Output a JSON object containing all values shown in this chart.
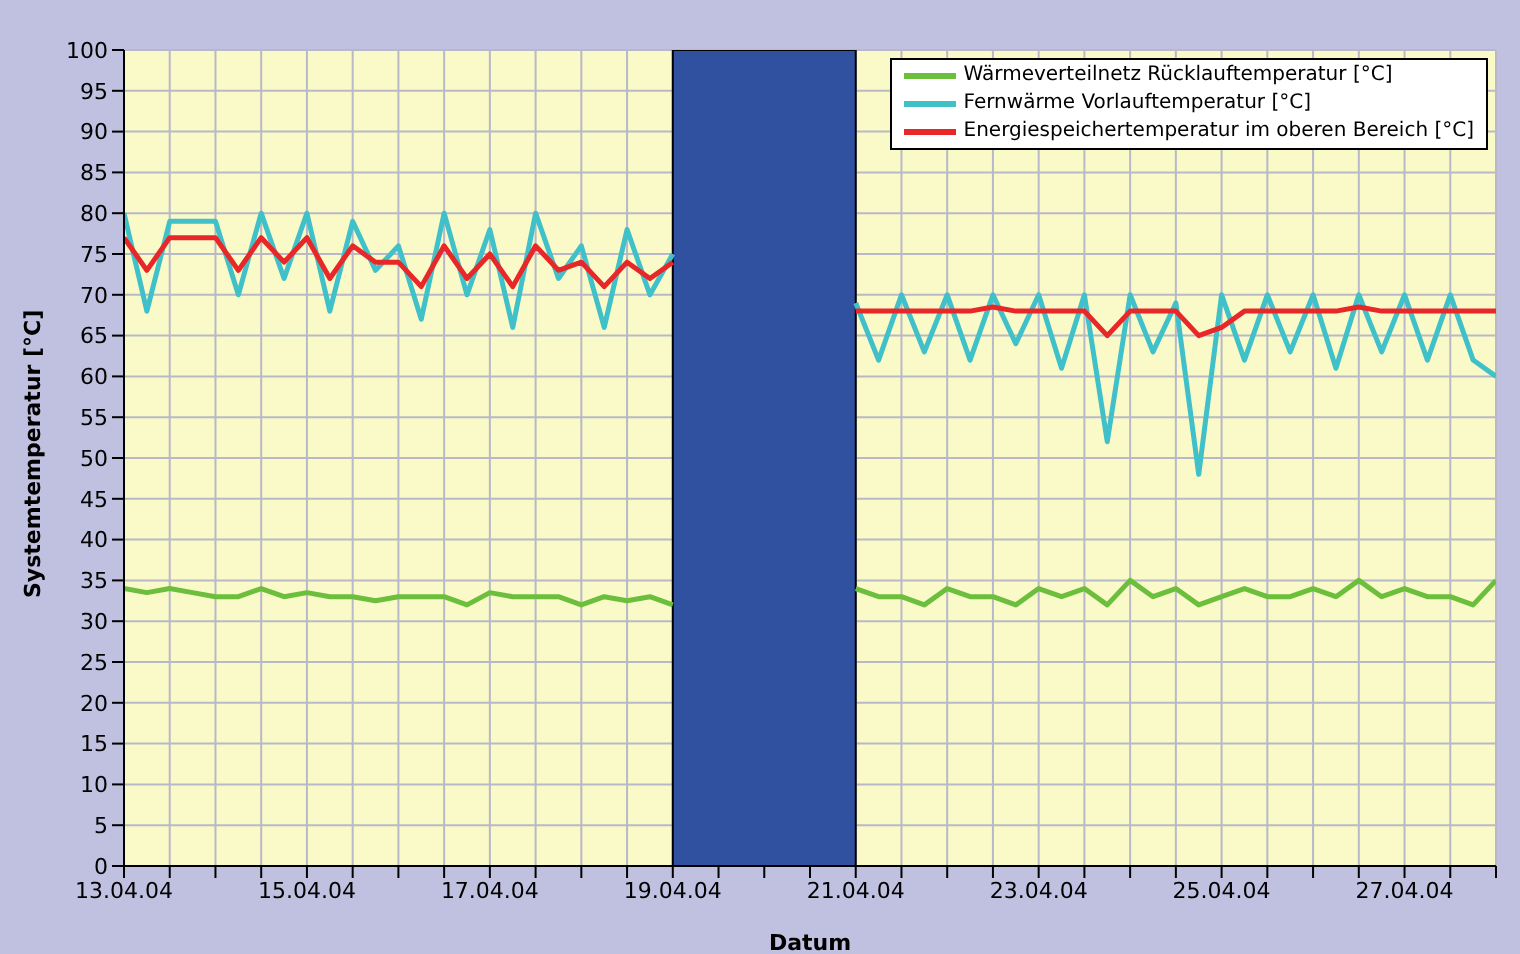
{
  "chart_data": {
    "type": "line",
    "xlabel": "Datum",
    "ylabel": "Systemtemperatur [°C]",
    "x": [
      "--04-13T00:00",
      "--04-13T06:00",
      "--04-13T12:00",
      "--04-13T18:00",
      "--04-14T00:00",
      "--04-14T06:00",
      "--04-14T12:00",
      "--04-14T18:00",
      "--04-15T00:00",
      "--04-15T06:00",
      "--04-15T12:00",
      "--04-15T18:00",
      "--04-16T00:00",
      "--04-16T06:00",
      "--04-16T12:00",
      "--04-16T18:00",
      "--04-17T00:00",
      "--04-17T06:00",
      "--04-17T12:00",
      "--04-17T18:00",
      "--04-18T00:00",
      "--04-18T06:00",
      "--04-18T12:00",
      "--04-18T18:00",
      "--04-19T00:00",
      "--04-20T00:00",
      "--04-21T00:00",
      "--04-21T06:00",
      "--04-21T12:00",
      "--04-21T18:00",
      "--04-22T00:00",
      "--04-22T06:00",
      "--04-22T12:00",
      "--04-22T18:00",
      "--04-23T00:00",
      "--04-23T06:00",
      "--04-23T12:00",
      "--04-23T18:00",
      "--04-24T00:00",
      "--04-24T06:00",
      "--04-24T12:00",
      "--04-24T18:00",
      "--04-25T00:00",
      "--04-25T06:00",
      "--04-25T12:00",
      "--04-25T18:00",
      "--04-26T00:00",
      "--04-26T06:00",
      "--04-26T12:00",
      "--04-26T18:00",
      "--04-27T00:00",
      "--04-27T06:00",
      "--04-27T12:00",
      "--04-27T18:00",
      "--04-28T00:00"
    ],
    "series": [
      {
        "name": "Wärmeverteilnetz Rücklauftemperatur [°C]",
        "color": "#6cbf3c",
        "values": [
          34,
          33.5,
          34,
          33.5,
          33,
          33,
          34,
          33,
          33.5,
          33,
          33,
          32.5,
          33,
          33,
          33,
          32,
          33.5,
          33,
          33,
          33,
          32,
          33,
          32.5,
          33,
          32,
          null,
          34,
          33,
          33,
          32,
          34,
          33,
          33,
          32,
          34,
          33,
          34,
          32,
          35,
          33,
          34,
          32,
          33,
          34,
          33,
          33,
          34,
          33,
          35,
          33,
          34,
          33,
          33,
          32,
          35
        ]
      },
      {
        "name": "Fernwärme Vorlauftemperatur [°C]",
        "color": "#40c0c8",
        "values": [
          80,
          68,
          79,
          79,
          79,
          70,
          80,
          72,
          80,
          68,
          79,
          73,
          76,
          67,
          80,
          70,
          78,
          66,
          80,
          72,
          76,
          66,
          78,
          70,
          75,
          null,
          69,
          62,
          70,
          63,
          70,
          62,
          70,
          64,
          70,
          61,
          70,
          52,
          70,
          63,
          69,
          48,
          70,
          62,
          70,
          63,
          70,
          61,
          70,
          63,
          70,
          62,
          70,
          62,
          60
        ]
      },
      {
        "name": "Energiespeichertemperatur im oberen Bereich [°C]",
        "color": "#e82828",
        "values": [
          77,
          73,
          77,
          77,
          77,
          73,
          77,
          74,
          77,
          72,
          76,
          74,
          74,
          71,
          76,
          72,
          75,
          71,
          76,
          73,
          74,
          71,
          74,
          72,
          74,
          null,
          68,
          68,
          68,
          68,
          68,
          68,
          68.5,
          68,
          68,
          68,
          68,
          65,
          68,
          68,
          68,
          65,
          66,
          68,
          68,
          68,
          68,
          68,
          68.5,
          68,
          68,
          68,
          68,
          68,
          68
        ]
      }
    ],
    "xlim": [
      "--04-13",
      "--04-28"
    ],
    "xticks": [
      {
        "value": "--04-13",
        "label": "13.04.04"
      },
      {
        "value": "--04-13T12:00",
        "label": null
      },
      {
        "value": "--04-14",
        "label": null
      },
      {
        "value": "--04-14T12:00",
        "label": null
      },
      {
        "value": "--04-15",
        "label": "15.04.04"
      },
      {
        "value": "--04-15T12:00",
        "label": null
      },
      {
        "value": "--04-16",
        "label": null
      },
      {
        "value": "--04-16T12:00",
        "label": null
      },
      {
        "value": "--04-17",
        "label": "17.04.04"
      },
      {
        "value": "--04-17T12:00",
        "label": null
      },
      {
        "value": "--04-18",
        "label": null
      },
      {
        "value": "--04-18T12:00",
        "label": null
      },
      {
        "value": "--04-19",
        "label": "19.04.04"
      },
      {
        "value": "--04-19T12:00",
        "label": null
      },
      {
        "value": "--04-20",
        "label": null
      },
      {
        "value": "--04-20T12:00",
        "label": null
      },
      {
        "value": "--04-21",
        "label": "21.04.04"
      },
      {
        "value": "--04-21T12:00",
        "label": null
      },
      {
        "value": "--04-22",
        "label": null
      },
      {
        "value": "--04-22T12:00",
        "label": null
      },
      {
        "value": "--04-23",
        "label": "23.04.04"
      },
      {
        "value": "--04-23T12:00",
        "label": null
      },
      {
        "value": "--04-24",
        "label": null
      },
      {
        "value": "--04-24T12:00",
        "label": null
      },
      {
        "value": "--04-25",
        "label": "25.04.04"
      },
      {
        "value": "--04-25T12:00",
        "label": null
      },
      {
        "value": "--04-26",
        "label": null
      },
      {
        "value": "--04-26T12:00",
        "label": null
      },
      {
        "value": "--04-27",
        "label": "27.04.04"
      },
      {
        "value": "--04-27T12:00",
        "label": null
      },
      {
        "value": "--04-28",
        "label": null
      }
    ],
    "bands": [
      {
        "axis": "x",
        "from": "--04-19",
        "to": "--04-21",
        "color": "#3050a0"
      }
    ],
    "ylim": [
      0,
      100
    ],
    "yticks": [
      0,
      5,
      10,
      15,
      20,
      25,
      30,
      35,
      40,
      45,
      50,
      55,
      60,
      65,
      70,
      75,
      80,
      85,
      90,
      95,
      100
    ],
    "grid": true,
    "legend": "top right",
    "marker": "none",
    "line_style": "solid"
  }
}
